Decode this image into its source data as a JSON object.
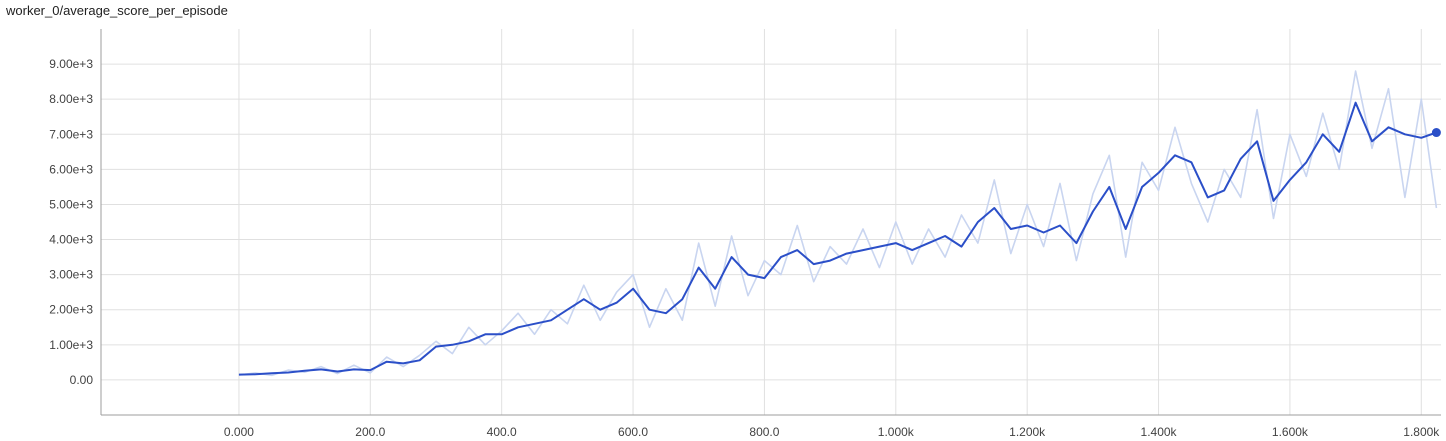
{
  "title": "worker_0/average_score_per_episode",
  "chart_data": {
    "type": "line",
    "title": "worker_0/average_score_per_episode",
    "xlabel": "",
    "ylabel": "",
    "xlim": [
      -210,
      1830
    ],
    "ylim": [
      -1000,
      10000
    ],
    "grid": true,
    "legend": "none",
    "x_ticks": [
      0,
      200,
      400,
      600,
      800,
      1000,
      1200,
      1400,
      1600,
      1800
    ],
    "x_tick_labels": [
      "0.000",
      "200.0",
      "400.0",
      "600.0",
      "800.0",
      "1.000k",
      "1.200k",
      "1.400k",
      "1.600k",
      "1.800k"
    ],
    "y_ticks": [
      0,
      1000,
      2000,
      3000,
      4000,
      5000,
      6000,
      7000,
      8000,
      9000
    ],
    "y_tick_labels": [
      "0.00",
      "1.00e+3",
      "2.00e+3",
      "3.00e+3",
      "4.00e+3",
      "5.00e+3",
      "6.00e+3",
      "7.00e+3",
      "8.00e+3",
      "9.00e+3"
    ],
    "colors": {
      "smoothed": "#2b4fc8",
      "raw": "#c9d5f0",
      "grid": "#e0e0e0"
    },
    "series": [
      {
        "x": [
          0,
          25,
          50,
          75,
          100,
          125,
          150,
          175,
          200,
          225,
          250,
          275,
          300,
          325,
          350,
          375,
          400,
          425,
          450,
          475,
          500,
          525,
          550,
          575,
          600,
          625,
          650,
          675,
          700,
          725,
          750,
          775,
          800,
          825,
          850,
          875,
          900,
          925,
          950,
          975,
          1000,
          1025,
          1050,
          1075,
          1100,
          1125,
          1150,
          1175,
          1200,
          1225,
          1250,
          1275,
          1300,
          1325,
          1350,
          1375,
          1400,
          1425,
          1450,
          1475,
          1500,
          1525,
          1550,
          1575,
          1600,
          1625,
          1650,
          1675,
          1700,
          1725,
          1750,
          1775,
          1800,
          1823
        ],
        "values": [
          150,
          160,
          190,
          210,
          260,
          300,
          240,
          300,
          280,
          520,
          470,
          560,
          950,
          1000,
          1100,
          1300,
          1300,
          1500,
          1600,
          1700,
          2000,
          2300,
          2000,
          2200,
          2600,
          2000,
          1900,
          2300,
          3200,
          2600,
          3500,
          3000,
          2900,
          3500,
          3700,
          3300,
          3400,
          3600,
          3700,
          3800,
          3900,
          3700,
          3900,
          4100,
          3800,
          4500,
          4900,
          4300,
          4400,
          4200,
          4400,
          3900,
          4800,
          5500,
          4300,
          5500,
          5900,
          6400,
          6200,
          5200,
          5400,
          6300,
          6800,
          5100,
          5700,
          6200,
          7000,
          6500,
          7900,
          6800,
          7200,
          7000,
          6900,
          7050
        ]
      },
      {
        "x": [
          0,
          25,
          50,
          75,
          100,
          125,
          150,
          175,
          200,
          225,
          250,
          275,
          300,
          325,
          350,
          375,
          400,
          425,
          450,
          475,
          500,
          525,
          550,
          575,
          600,
          625,
          650,
          675,
          700,
          725,
          750,
          775,
          800,
          825,
          850,
          875,
          900,
          925,
          950,
          975,
          1000,
          1025,
          1050,
          1075,
          1100,
          1125,
          1150,
          1175,
          1200,
          1225,
          1250,
          1275,
          1300,
          1325,
          1350,
          1375,
          1400,
          1425,
          1450,
          1475,
          1500,
          1525,
          1550,
          1575,
          1600,
          1625,
          1650,
          1675,
          1700,
          1725,
          1750,
          1775,
          1800,
          1823
        ],
        "values": [
          140,
          200,
          130,
          280,
          220,
          380,
          180,
          420,
          200,
          650,
          380,
          700,
          1100,
          750,
          1500,
          1000,
          1400,
          1900,
          1300,
          2000,
          1600,
          2700,
          1700,
          2500,
          3000,
          1500,
          2600,
          1700,
          3900,
          2100,
          4100,
          2400,
          3400,
          3000,
          4400,
          2800,
          3800,
          3300,
          4300,
          3200,
          4500,
          3300,
          4300,
          3500,
          4700,
          3900,
          5700,
          3600,
          5000,
          3800,
          5600,
          3400,
          5300,
          6400,
          3500,
          6200,
          5400,
          7200,
          5600,
          4500,
          6000,
          5200,
          7700,
          4600,
          7000,
          5800,
          7600,
          6000,
          8800,
          6600,
          8300,
          5200,
          8000,
          4900
        ]
      }
    ]
  }
}
